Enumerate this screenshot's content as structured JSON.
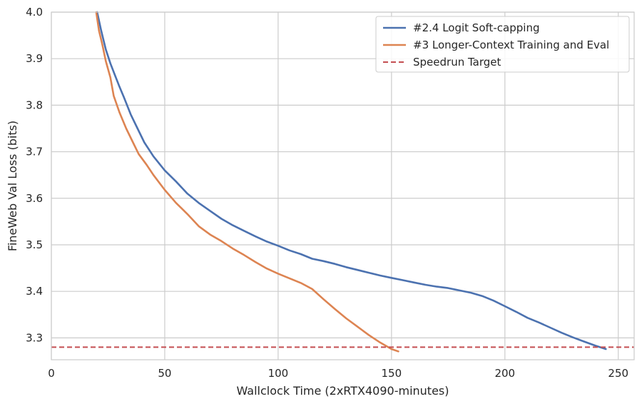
{
  "chart_data": {
    "type": "line",
    "xlabel": "Wallclock Time (2xRTX4090-minutes)",
    "ylabel": "FineWeb Val Loss (bits)",
    "xlim": [
      0,
      257
    ],
    "ylim": [
      3.253,
      4.0
    ],
    "x_ticks": [
      0,
      50,
      100,
      150,
      200,
      250
    ],
    "y_ticks": [
      3.3,
      3.4,
      3.5,
      3.6,
      3.7,
      3.8,
      3.9,
      4.0
    ],
    "x_tick_labels": [
      "0",
      "50",
      "100",
      "150",
      "200",
      "250"
    ],
    "y_tick_labels": [
      "3.3",
      "3.4",
      "3.5",
      "3.6",
      "3.7",
      "3.8",
      "3.9",
      "4.0"
    ],
    "grid": true,
    "legend_position": "top-right",
    "series": [
      {
        "name": "#2.4 Logit Soft-capping",
        "color": "#4c72b0",
        "style": "solid",
        "points": [
          [
            20.2,
            4.0
          ],
          [
            22,
            3.96
          ],
          [
            24,
            3.92
          ],
          [
            26,
            3.89
          ],
          [
            28,
            3.865
          ],
          [
            30,
            3.84
          ],
          [
            32,
            3.817
          ],
          [
            35,
            3.78
          ],
          [
            38,
            3.75
          ],
          [
            41,
            3.72
          ],
          [
            45,
            3.69
          ],
          [
            50,
            3.66
          ],
          [
            55,
            3.636
          ],
          [
            60,
            3.61
          ],
          [
            65,
            3.59
          ],
          [
            70,
            3.573
          ],
          [
            75,
            3.556
          ],
          [
            80,
            3.542
          ],
          [
            85,
            3.53
          ],
          [
            90,
            3.518
          ],
          [
            95,
            3.507
          ],
          [
            100,
            3.498
          ],
          [
            105,
            3.488
          ],
          [
            110,
            3.48
          ],
          [
            115,
            3.47
          ],
          [
            120,
            3.465
          ],
          [
            125,
            3.459
          ],
          [
            130,
            3.452
          ],
          [
            135,
            3.446
          ],
          [
            140,
            3.44
          ],
          [
            145,
            3.434
          ],
          [
            150,
            3.429
          ],
          [
            155,
            3.424
          ],
          [
            160,
            3.419
          ],
          [
            165,
            3.414
          ],
          [
            170,
            3.41
          ],
          [
            175,
            3.407
          ],
          [
            180,
            3.402
          ],
          [
            185,
            3.397
          ],
          [
            190,
            3.39
          ],
          [
            195,
            3.38
          ],
          [
            200,
            3.368
          ],
          [
            205,
            3.356
          ],
          [
            210,
            3.343
          ],
          [
            215,
            3.333
          ],
          [
            220,
            3.322
          ],
          [
            225,
            3.311
          ],
          [
            230,
            3.301
          ],
          [
            235,
            3.292
          ],
          [
            240,
            3.283
          ],
          [
            244.5,
            3.276
          ]
        ]
      },
      {
        "name": "#3 Longer-Context Training and Eval",
        "color": "#dd8452",
        "style": "solid",
        "points": [
          [
            19.8,
            4.0
          ],
          [
            21,
            3.96
          ],
          [
            22.5,
            3.93
          ],
          [
            24,
            3.895
          ],
          [
            26,
            3.86
          ],
          [
            27.5,
            3.82
          ],
          [
            30,
            3.785
          ],
          [
            33,
            3.75
          ],
          [
            36,
            3.72
          ],
          [
            38.5,
            3.695
          ],
          [
            42,
            3.672
          ],
          [
            45,
            3.65
          ],
          [
            50,
            3.618
          ],
          [
            55,
            3.59
          ],
          [
            60,
            3.566
          ],
          [
            65,
            3.54
          ],
          [
            70,
            3.522
          ],
          [
            75,
            3.508
          ],
          [
            80,
            3.492
          ],
          [
            85,
            3.478
          ],
          [
            90,
            3.463
          ],
          [
            95,
            3.449
          ],
          [
            100,
            3.438
          ],
          [
            105,
            3.428
          ],
          [
            110,
            3.418
          ],
          [
            115,
            3.405
          ],
          [
            120,
            3.383
          ],
          [
            125,
            3.362
          ],
          [
            130,
            3.342
          ],
          [
            135,
            3.324
          ],
          [
            140,
            3.306
          ],
          [
            145,
            3.29
          ],
          [
            150,
            3.276
          ],
          [
            153,
            3.271
          ]
        ]
      },
      {
        "name": "Speedrun Target",
        "color": "#c44e52",
        "style": "dashed",
        "y": 3.28
      }
    ]
  }
}
